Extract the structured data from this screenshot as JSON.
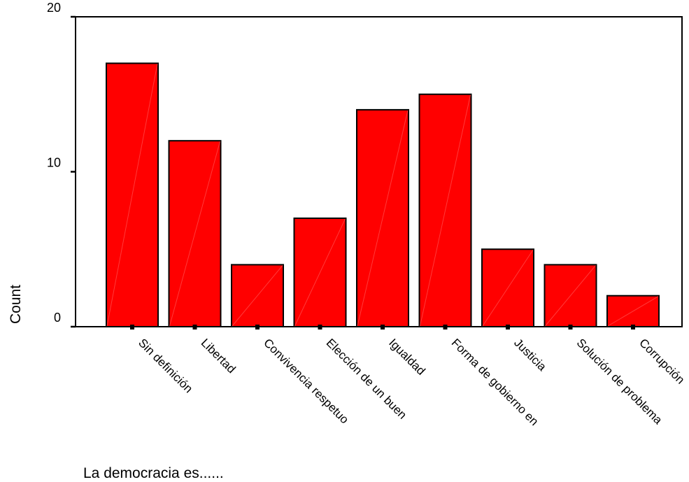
{
  "chart_data": {
    "type": "bar",
    "categories": [
      "Sin definición",
      "Libertad",
      "Convivencia respetuo",
      "Elección de un buen",
      "Igualdad",
      "Forma de gobierno en",
      "Justicia",
      "Solución de problema",
      "Corrupción"
    ],
    "values": [
      17,
      12,
      4,
      7,
      14,
      15,
      5,
      4,
      2
    ],
    "xlabel": "La democracia  es......",
    "ylabel": "Count",
    "ylim": [
      0,
      20
    ],
    "yticks": [
      0,
      10,
      20
    ],
    "grid": false,
    "bar_color": "#ff0000",
    "bar_outline_color": "#000000"
  }
}
